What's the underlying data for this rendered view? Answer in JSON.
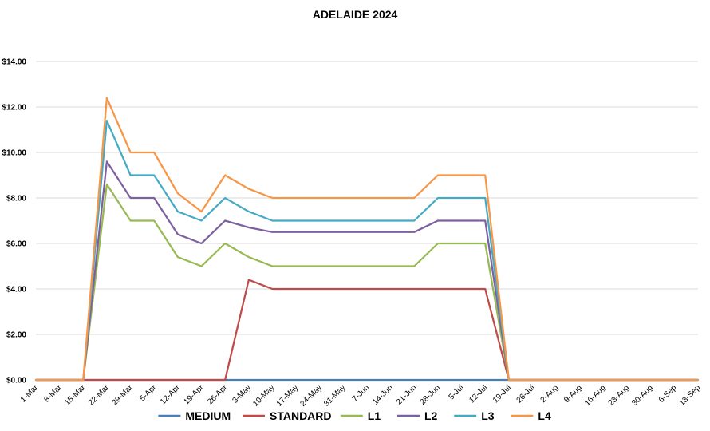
{
  "chart_data": {
    "type": "line",
    "title": "ADELAIDE 2024",
    "xlabel": "",
    "ylabel": "",
    "ylim": [
      0,
      14
    ],
    "yticks": [
      "$0.00",
      "$2.00",
      "$4.00",
      "$6.00",
      "$8.00",
      "$10.00",
      "$12.00",
      "$14.00"
    ],
    "categories": [
      "1-Mar",
      "8-Mar",
      "15-Mar",
      "22-Mar",
      "29-Mar",
      "5-Apr",
      "12-Apr",
      "19-Apr",
      "26-Apr",
      "3-May",
      "10-May",
      "17-May",
      "24-May",
      "31-May",
      "7-Jun",
      "14-Jun",
      "21-Jun",
      "28-Jun",
      "5-Jul",
      "12-Jul",
      "19-Jul",
      "26-Jul",
      "2-Aug",
      "9-Aug",
      "16-Aug",
      "23-Aug",
      "30-Aug",
      "6-Sep",
      "13-Sep"
    ],
    "grid": true,
    "legend_position": "bottom",
    "series": [
      {
        "name": "MEDIUM",
        "color": "#4a7ebb",
        "values": [
          0,
          0,
          0,
          0,
          0,
          0,
          0,
          0,
          0,
          0,
          0,
          0,
          0,
          0,
          0,
          0,
          0,
          0,
          0,
          0,
          0,
          0,
          0,
          0,
          0,
          0,
          0,
          0,
          0
        ]
      },
      {
        "name": "STANDARD",
        "color": "#be4b48",
        "values": [
          0,
          0,
          0,
          0,
          0,
          0,
          0,
          0,
          0,
          4.4,
          4,
          4,
          4,
          4,
          4,
          4,
          4,
          4,
          4,
          4,
          0,
          0,
          0,
          0,
          0,
          0,
          0,
          0,
          0
        ]
      },
      {
        "name": "L1",
        "color": "#98b954",
        "values": [
          0,
          0,
          0,
          8.6,
          7,
          7,
          5.4,
          5,
          6,
          5.4,
          5,
          5,
          5,
          5,
          5,
          5,
          5,
          6,
          6,
          6,
          0,
          0,
          0,
          0,
          0,
          0,
          0,
          0,
          0
        ]
      },
      {
        "name": "L2",
        "color": "#7d60a0",
        "values": [
          0,
          0,
          0,
          9.6,
          8,
          8,
          6.4,
          6,
          7,
          6.7,
          6.5,
          6.5,
          6.5,
          6.5,
          6.5,
          6.5,
          6.5,
          7,
          7,
          7,
          0,
          0,
          0,
          0,
          0,
          0,
          0,
          0,
          0
        ]
      },
      {
        "name": "L3",
        "color": "#46aac5",
        "values": [
          0,
          0,
          0,
          11.4,
          9,
          9,
          7.4,
          7,
          8,
          7.4,
          7,
          7,
          7,
          7,
          7,
          7,
          7,
          8,
          8,
          8,
          0,
          0,
          0,
          0,
          0,
          0,
          0,
          0,
          0
        ]
      },
      {
        "name": "L4",
        "color": "#f79646",
        "values": [
          0,
          0,
          0,
          12.4,
          10,
          10,
          8.2,
          7.4,
          9,
          8.4,
          8,
          8,
          8,
          8,
          8,
          8,
          8,
          9,
          9,
          9,
          0,
          0,
          0,
          0,
          0,
          0,
          0,
          0,
          0
        ]
      }
    ]
  }
}
